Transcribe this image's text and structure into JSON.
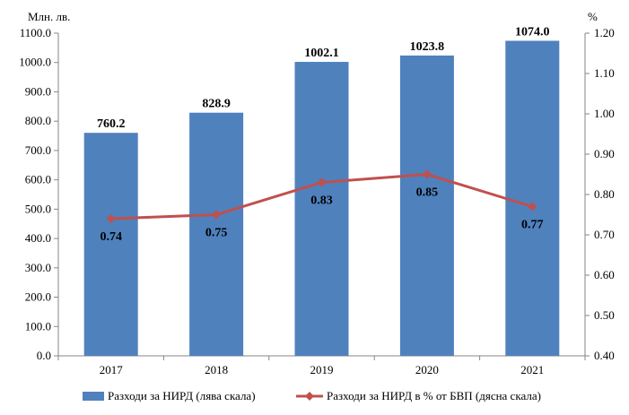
{
  "chart_data": {
    "type": "bar+line",
    "categories": [
      "2017",
      "2018",
      "2019",
      "2020",
      "2021"
    ],
    "left_axis": {
      "unit_label": "Млн. лв.",
      "min": 0,
      "max": 1100,
      "step": 100,
      "tick_labels": [
        "0.0",
        "100.0",
        "200.0",
        "300.0",
        "400.0",
        "500.0",
        "600.0",
        "700.0",
        "800.0",
        "900.0",
        "1000.0",
        "1100.0"
      ]
    },
    "right_axis": {
      "unit_label": "%",
      "min": 0.4,
      "max": 1.2,
      "step": 0.1,
      "tick_labels": [
        "0.40",
        "0.50",
        "0.60",
        "0.70",
        "0.80",
        "0.90",
        "1.00",
        "1.10",
        "1.20"
      ]
    },
    "series": [
      {
        "name": "Разходи за НИРД (лява скала)",
        "type": "bar",
        "axis": "left",
        "color": "#4F81BD",
        "values": [
          760.2,
          828.9,
          1002.1,
          1023.8,
          1074.0
        ],
        "value_labels": [
          "760.2",
          "828.9",
          "1002.1",
          "1023.8",
          "1074.0"
        ]
      },
      {
        "name": "Разходи за НИРД в % от БВП (дясна скала)",
        "type": "line",
        "axis": "right",
        "color": "#C0504D",
        "values": [
          0.74,
          0.75,
          0.83,
          0.85,
          0.77
        ],
        "value_labels": [
          "0.74",
          "0.75",
          "0.83",
          "0.85",
          "0.77"
        ]
      }
    ],
    "legend_position": "bottom"
  }
}
